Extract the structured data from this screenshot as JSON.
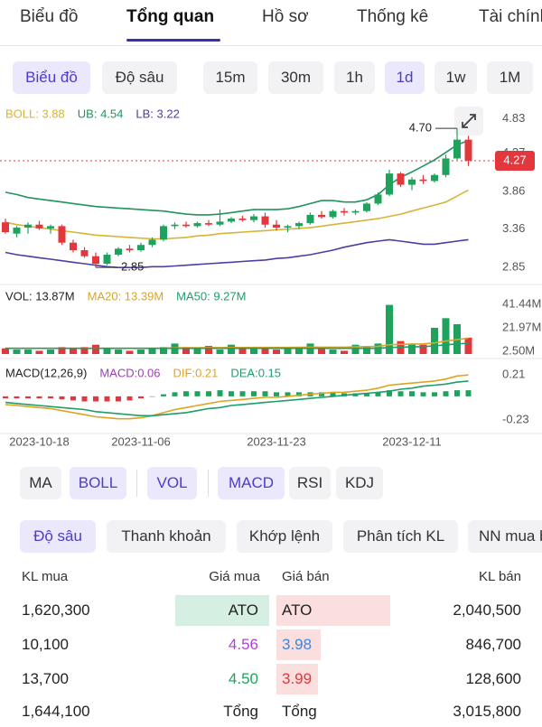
{
  "tabs": [
    "Biểu đồ",
    "Tổng quan",
    "Hồ sơ",
    "Thống kê",
    "Tài chính"
  ],
  "view_buttons": [
    "Biểu đồ",
    "Độ sâu"
  ],
  "period_buttons": [
    "15m",
    "30m",
    "1h",
    "1d",
    "1w",
    "1M"
  ],
  "chart_data": [
    {
      "type": "candlestick",
      "categories": [
        null,
        null,
        null,
        "2023-10-18",
        null,
        null,
        null,
        null,
        null,
        null,
        null,
        null,
        "2023-11-06",
        null,
        null,
        null,
        null,
        null,
        null,
        null,
        null,
        null,
        null,
        null,
        "2023-11-23",
        null,
        null,
        null,
        null,
        null,
        null,
        null,
        null,
        null,
        null,
        null,
        "2023-12-11",
        null,
        null,
        null,
        null,
        null
      ],
      "candles": {
        "open": [
          3.45,
          3.3,
          3.38,
          3.42,
          3.37,
          3.4,
          3.18,
          3.08,
          3.0,
          2.9,
          3.02,
          3.1,
          3.08,
          3.15,
          3.22,
          3.4,
          3.42,
          3.4,
          3.44,
          3.42,
          3.46,
          3.5,
          3.48,
          3.53,
          3.42,
          3.38,
          3.4,
          3.44,
          3.55,
          3.52,
          3.6,
          3.58,
          3.6,
          3.7,
          3.82,
          4.1,
          3.95,
          4.02,
          4.0,
          4.08,
          4.3,
          4.55
        ],
        "high": [
          3.5,
          3.4,
          3.45,
          3.47,
          3.42,
          3.42,
          3.22,
          3.12,
          3.05,
          3.05,
          3.12,
          3.15,
          3.18,
          3.25,
          3.42,
          3.45,
          3.46,
          3.46,
          3.48,
          3.62,
          3.52,
          3.54,
          3.56,
          3.58,
          3.48,
          3.42,
          3.46,
          3.58,
          3.6,
          3.62,
          3.64,
          3.62,
          3.72,
          3.85,
          4.15,
          4.12,
          4.05,
          4.08,
          4.1,
          4.35,
          4.7,
          4.6
        ],
        "low": [
          3.3,
          3.25,
          3.3,
          3.35,
          3.3,
          3.15,
          3.05,
          2.98,
          2.85,
          2.88,
          3.0,
          3.05,
          3.06,
          3.12,
          3.2,
          3.36,
          3.38,
          3.38,
          3.4,
          3.4,
          3.44,
          3.46,
          3.45,
          3.38,
          3.34,
          3.32,
          3.36,
          3.42,
          3.5,
          3.5,
          3.54,
          3.55,
          3.58,
          3.68,
          3.8,
          3.92,
          3.88,
          3.96,
          3.98,
          4.05,
          4.28,
          4.2
        ],
        "close": [
          3.32,
          3.38,
          3.42,
          3.37,
          3.4,
          3.18,
          3.08,
          3.0,
          2.9,
          3.02,
          3.1,
          3.08,
          3.15,
          3.22,
          3.4,
          3.42,
          3.4,
          3.44,
          3.42,
          3.46,
          3.5,
          3.48,
          3.53,
          3.42,
          3.38,
          3.4,
          3.44,
          3.55,
          3.52,
          3.6,
          3.58,
          3.6,
          3.7,
          3.82,
          4.1,
          3.95,
          4.02,
          4.0,
          4.08,
          4.3,
          4.55,
          4.27
        ]
      },
      "up_color": "#1fa35c",
      "down_color": "#e2373d",
      "series": [
        {
          "name": "BOLL: 3.88",
          "color": "#d8b436",
          "values": [
            3.45,
            3.42,
            3.4,
            3.38,
            3.36,
            3.34,
            3.32,
            3.3,
            3.28,
            3.27,
            3.26,
            3.25,
            3.24,
            3.23,
            3.23,
            3.24,
            3.25,
            3.27,
            3.28,
            3.3,
            3.31,
            3.32,
            3.33,
            3.34,
            3.35,
            3.36,
            3.37,
            3.38,
            3.4,
            3.42,
            3.44,
            3.46,
            3.48,
            3.5,
            3.53,
            3.56,
            3.6,
            3.64,
            3.68,
            3.72,
            3.8,
            3.88
          ]
        },
        {
          "name": "UB: 4.54",
          "color": "#1f945d",
          "values": [
            3.85,
            3.82,
            3.78,
            3.76,
            3.74,
            3.72,
            3.7,
            3.68,
            3.66,
            3.65,
            3.64,
            3.63,
            3.62,
            3.61,
            3.6,
            3.58,
            3.56,
            3.55,
            3.55,
            3.56,
            3.58,
            3.6,
            3.62,
            3.62,
            3.62,
            3.63,
            3.66,
            3.7,
            3.74,
            3.74,
            3.72,
            3.72,
            3.75,
            3.82,
            3.95,
            4.05,
            4.12,
            4.2,
            4.28,
            4.38,
            4.48,
            4.54
          ]
        },
        {
          "name": "LB: 3.22",
          "color": "#4a3fa3",
          "values": [
            3.05,
            3.02,
            3.0,
            2.98,
            2.96,
            2.94,
            2.92,
            2.9,
            2.88,
            2.86,
            2.85,
            2.85,
            2.85,
            2.86,
            2.86,
            2.87,
            2.88,
            2.89,
            2.9,
            2.91,
            2.92,
            2.93,
            2.94,
            2.95,
            2.97,
            2.98,
            3.0,
            3.02,
            3.05,
            3.08,
            3.12,
            3.15,
            3.18,
            3.2,
            3.22,
            3.2,
            3.18,
            3.16,
            3.16,
            3.18,
            3.2,
            3.22
          ]
        }
      ],
      "ylim": [
        2.66,
        4.99
      ],
      "yticks": [
        4.83,
        4.37,
        3.86,
        3.36,
        2.85
      ],
      "last_price": 4.27,
      "annotations": {
        "high": {
          "value": 4.7,
          "label": "4.70"
        },
        "low": 2.85
      }
    },
    {
      "type": "bar",
      "series": [
        {
          "name": "VOL: 13.87M",
          "color": "#222222",
          "values": [
            5,
            4,
            4,
            3,
            4,
            6,
            5,
            6,
            8,
            5,
            4,
            3,
            4,
            5,
            6,
            9,
            6,
            5,
            7,
            4,
            8,
            5,
            6,
            5,
            4,
            5,
            6,
            9,
            5,
            4,
            3,
            8,
            7,
            9,
            41,
            11,
            9,
            8,
            22,
            30,
            25,
            13.87
          ]
        },
        {
          "name": "MA20: 13.39M",
          "color": "#d8a52a",
          "values": [
            5,
            5,
            5,
            5,
            5,
            5,
            5,
            5,
            5,
            5,
            5,
            5,
            5,
            5,
            5.2,
            5.4,
            5.5,
            5.5,
            5.6,
            5.6,
            5.7,
            5.7,
            5.8,
            5.8,
            5.8,
            5.8,
            5.9,
            6,
            6,
            6,
            6,
            6.2,
            6.4,
            6.6,
            8,
            8.3,
            8.5,
            8.7,
            9.5,
            11,
            12.2,
            13.39
          ]
        },
        {
          "name": "MA50: 9.27M",
          "color": "#1f9d6a",
          "values": [
            5,
            5,
            5,
            5,
            5,
            5,
            5,
            5,
            5,
            5,
            5,
            5,
            5,
            5,
            5,
            5,
            5,
            5,
            5,
            5,
            5,
            5,
            5,
            5,
            5,
            5,
            5,
            5,
            5,
            5,
            5,
            5,
            5,
            5,
            5.8,
            6,
            6.2,
            6.4,
            7,
            8,
            8.6,
            9.27
          ]
        }
      ],
      "ylim": [
        0.3,
        46.7
      ],
      "yticks": [
        {
          "value": 41.44,
          "label": "41.44M"
        },
        {
          "value": 21.97,
          "label": "21.97M"
        },
        {
          "value": 2.5,
          "label": "2.50M"
        }
      ]
    },
    {
      "type": "macd",
      "title": "MACD(12,26,9)",
      "series": [
        {
          "name": "MACD:0.06",
          "color": "#9a3fb6",
          "values": [
            -0.02,
            -0.02,
            -0.02,
            -0.02,
            -0.02,
            -0.03,
            -0.04,
            -0.05,
            -0.05,
            -0.05,
            -0.05,
            -0.04,
            -0.02,
            0,
            0.02,
            0.04,
            0.05,
            0.05,
            0.05,
            0.06,
            0.05,
            0.05,
            0.05,
            0.05,
            0.04,
            0.04,
            0.04,
            0.04,
            0.04,
            0.04,
            0.03,
            0.03,
            0.03,
            0.04,
            0.06,
            0.05,
            0.05,
            0.04,
            0.04,
            0.05,
            0.06,
            0.06
          ]
        },
        {
          "name": "DIF:0.21",
          "color": "#e0a320",
          "values": [
            -0.08,
            -0.09,
            -0.1,
            -0.11,
            -0.12,
            -0.14,
            -0.16,
            -0.18,
            -0.2,
            -0.21,
            -0.22,
            -0.22,
            -0.21,
            -0.19,
            -0.16,
            -0.13,
            -0.11,
            -0.09,
            -0.07,
            -0.05,
            -0.04,
            -0.03,
            -0.02,
            -0.01,
            -0.01,
            0,
            0.01,
            0.02,
            0.03,
            0.04,
            0.04,
            0.05,
            0.06,
            0.08,
            0.11,
            0.12,
            0.13,
            0.14,
            0.15,
            0.17,
            0.2,
            0.21
          ]
        },
        {
          "name": "DEA:0.15",
          "color": "#1f9d6a",
          "values": [
            -0.06,
            -0.07,
            -0.08,
            -0.09,
            -0.1,
            -0.11,
            -0.12,
            -0.13,
            -0.15,
            -0.16,
            -0.17,
            -0.18,
            -0.19,
            -0.19,
            -0.18,
            -0.17,
            -0.16,
            -0.14,
            -0.12,
            -0.11,
            -0.09,
            -0.08,
            -0.07,
            -0.06,
            -0.05,
            -0.04,
            -0.03,
            -0.02,
            -0.01,
            0,
            0.01,
            0.02,
            0.03,
            0.04,
            0.05,
            0.07,
            0.08,
            0.1,
            0.11,
            0.12,
            0.14,
            0.15
          ]
        }
      ],
      "ylim": [
        -0.32,
        0.3
      ],
      "yticks": [
        0.21,
        -0.23
      ]
    }
  ],
  "indicator_buttons": [
    "MA",
    "BOLL",
    "VOL",
    "MACD",
    "RSI",
    "KDJ"
  ],
  "depth_tabs": [
    "Độ sâu",
    "Thanh khoản",
    "Khớp lệnh",
    "Phân tích KL",
    "NN mua bán"
  ],
  "order_book": {
    "headers": [
      "KL mua",
      "Giá mua",
      "Giá bán",
      "KL bán"
    ],
    "rows": [
      [
        "1,620,300",
        "ATO",
        "ATO",
        "2,040,500"
      ],
      [
        "10,100",
        "4.56",
        "3.98",
        "846,700"
      ],
      [
        "13,700",
        "4.50",
        "3.99",
        "128,600"
      ],
      [
        "1,644,100",
        "Tổng",
        "Tổng",
        "3,015,800"
      ]
    ]
  }
}
